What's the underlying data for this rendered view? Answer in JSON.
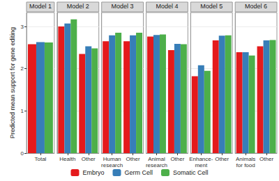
{
  "chart_data": [
    {
      "type": "bar",
      "title": "Model 1",
      "ylabel": "Predicted mean support for gene editing",
      "categories": [
        "Total"
      ],
      "series": [
        {
          "name": "Embryo",
          "color": "#e41a1c",
          "values": [
            2.58
          ]
        },
        {
          "name": "Germ Cell",
          "color": "#377eb8",
          "values": [
            2.63
          ]
        },
        {
          "name": "Somatic Cell",
          "color": "#4daf4a",
          "values": [
            2.62
          ]
        }
      ],
      "ylim": [
        0,
        3.33
      ],
      "yticks": [
        0,
        1,
        2,
        3
      ],
      "grid": true,
      "legend": "bottom"
    },
    {
      "type": "bar",
      "title": "Model 2",
      "categories": [
        "Health",
        "Other"
      ],
      "series": [
        {
          "name": "Embryo",
          "color": "#e41a1c",
          "values": [
            3.0,
            2.35
          ]
        },
        {
          "name": "Germ Cell",
          "color": "#377eb8",
          "values": [
            3.07,
            2.53
          ]
        },
        {
          "name": "Somatic Cell",
          "color": "#4daf4a",
          "values": [
            3.17,
            2.48
          ]
        }
      ],
      "ylim": [
        0,
        3.33
      ],
      "yticks": [
        0,
        1,
        2,
        3
      ],
      "grid": true,
      "tick_labels": "x"
    },
    {
      "type": "bar",
      "title": "Model 3",
      "categories": [
        "Human\nresearch",
        "Other"
      ],
      "series": [
        {
          "name": "Embryo",
          "color": "#e41a1c",
          "values": [
            2.65,
            2.65
          ]
        },
        {
          "name": "Germ Cell",
          "color": "#377eb8",
          "values": [
            2.79,
            2.79
          ]
        },
        {
          "name": "Somatic Cell",
          "color": "#4daf4a",
          "values": [
            2.85,
            2.85
          ]
        }
      ],
      "ylim": [
        0,
        3.33
      ],
      "yticks": [
        0,
        1,
        2,
        3
      ],
      "grid": true,
      "tick_labels": "x"
    },
    {
      "type": "bar",
      "title": "Model 4",
      "categories": [
        "Animal\nresearch",
        "Other"
      ],
      "series": [
        {
          "name": "Embryo",
          "color": "#e41a1c",
          "values": [
            2.76,
            2.44
          ]
        },
        {
          "name": "Germ Cell",
          "color": "#377eb8",
          "values": [
            2.8,
            2.59
          ]
        },
        {
          "name": "Somatic Cell",
          "color": "#4daf4a",
          "values": [
            2.81,
            2.58
          ]
        }
      ],
      "ylim": [
        0,
        3.33
      ],
      "yticks": [
        0,
        1,
        2,
        3
      ],
      "grid": true,
      "tick_labels": "x"
    },
    {
      "type": "bar",
      "title": "Model 5",
      "categories": [
        "Enhance-\nment",
        "Other"
      ],
      "series": [
        {
          "name": "Embryo",
          "color": "#e41a1c",
          "values": [
            1.82,
            2.67
          ]
        },
        {
          "name": "Germ Cell",
          "color": "#377eb8",
          "values": [
            2.08,
            2.78
          ]
        },
        {
          "name": "Somatic Cell",
          "color": "#4daf4a",
          "values": [
            1.95,
            2.79
          ]
        }
      ],
      "ylim": [
        0,
        3.33
      ],
      "yticks": [
        0,
        1,
        2,
        3
      ],
      "grid": true,
      "tick_labels": "x"
    },
    {
      "type": "bar",
      "title": "Model 6",
      "categories": [
        "Animals\nfor food",
        "Other"
      ],
      "series": [
        {
          "name": "Embryo",
          "color": "#e41a1c",
          "values": [
            2.39,
            2.53
          ]
        },
        {
          "name": "Germ Cell",
          "color": "#377eb8",
          "values": [
            2.39,
            2.67
          ]
        },
        {
          "name": "Somatic Cell",
          "color": "#4daf4a",
          "values": [
            2.31,
            2.68
          ]
        }
      ],
      "ylim": [
        0,
        3.33
      ],
      "yticks": [
        0,
        1,
        2,
        3
      ],
      "grid": true,
      "tick_labels": "x"
    }
  ]
}
